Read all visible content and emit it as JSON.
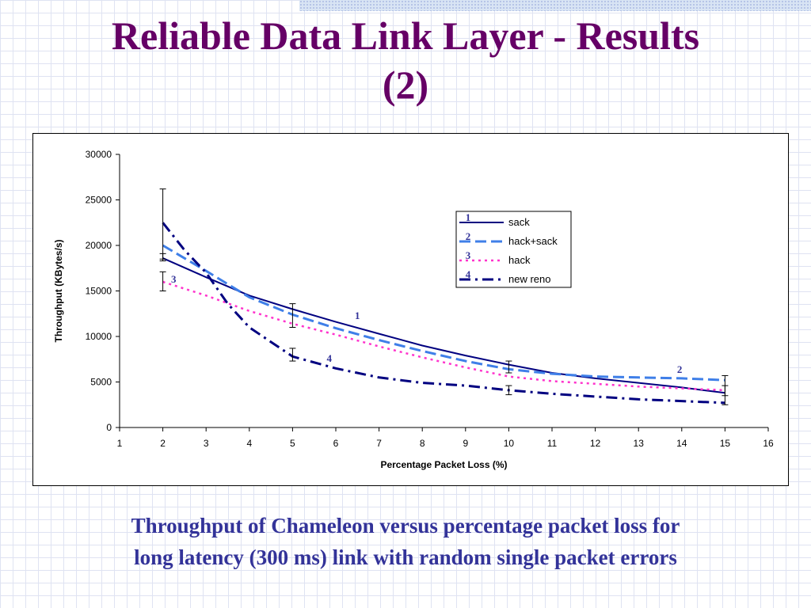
{
  "slide": {
    "title_line1": "Reliable Data Link Layer - Results",
    "title_line2": "(2)",
    "caption_line1": "Throughput of Chameleon versus percentage packet loss for",
    "caption_line2": "long latency (300 ms) link with random single packet errors"
  },
  "chart_data": {
    "type": "line",
    "title": "",
    "xlabel": "Percentage Packet Loss (%)",
    "ylabel": "Throughput (KBytes/s)",
    "xlim": [
      1,
      16
    ],
    "ylim": [
      0,
      30000
    ],
    "x_ticks": [
      1,
      2,
      3,
      4,
      5,
      6,
      7,
      8,
      9,
      10,
      11,
      12,
      13,
      14,
      15,
      16
    ],
    "y_ticks": [
      0,
      5000,
      10000,
      15000,
      20000,
      25000,
      30000
    ],
    "grid": false,
    "legend_position": "upper-right",
    "series": [
      {
        "name": "sack",
        "number": "1",
        "color": "#000080",
        "dash": "solid",
        "x": [
          2,
          3,
          4,
          5,
          6,
          7,
          8,
          9,
          10,
          11,
          12,
          13,
          14,
          15
        ],
        "y": [
          18600,
          16500,
          14500,
          13000,
          11600,
          10300,
          9000,
          7900,
          6900,
          6000,
          5400,
          4900,
          4400,
          3800
        ]
      },
      {
        "name": "hack+sack",
        "number": "2",
        "color": "#3f7fe8",
        "dash": "dash",
        "x": [
          2,
          3,
          4,
          5,
          6,
          7,
          8,
          9,
          10,
          11,
          12,
          13,
          14,
          15
        ],
        "y": [
          20000,
          17200,
          14300,
          12400,
          10900,
          9600,
          8400,
          7300,
          6400,
          5900,
          5600,
          5500,
          5400,
          5200
        ]
      },
      {
        "name": "hack",
        "number": "3",
        "color": "#ff33cc",
        "dash": "dot",
        "x": [
          2,
          3,
          4,
          5,
          6,
          7,
          8,
          9,
          10,
          11,
          12,
          13,
          14,
          15
        ],
        "y": [
          16000,
          14500,
          12800,
          11400,
          10200,
          8900,
          7700,
          6600,
          5600,
          5100,
          4800,
          4500,
          4300,
          4100
        ]
      },
      {
        "name": "new reno",
        "number": "4",
        "color": "#000080",
        "dash": "dashdot",
        "x": [
          2,
          2.5,
          3,
          3.5,
          4,
          5,
          6,
          7,
          8,
          9,
          10,
          11,
          12,
          13,
          14,
          15
        ],
        "y": [
          22500,
          19500,
          17000,
          13600,
          11000,
          7800,
          6500,
          5500,
          4900,
          4600,
          4100,
          3700,
          3400,
          3100,
          2900,
          2700
        ]
      }
    ],
    "error_bars": [
      {
        "x": 2,
        "low": 18500,
        "high": 26200
      },
      {
        "x": 2,
        "low": 18300,
        "high": 19100
      },
      {
        "x": 2,
        "low": 15000,
        "high": 17100
      },
      {
        "x": 5,
        "low": 11000,
        "high": 13600
      },
      {
        "x": 5,
        "low": 7300,
        "high": 8700
      },
      {
        "x": 10,
        "low": 6000,
        "high": 7300
      },
      {
        "x": 10,
        "low": 3600,
        "high": 4600
      },
      {
        "x": 15,
        "low": 3500,
        "high": 5700
      },
      {
        "x": 15,
        "low": 2500,
        "high": 4600
      }
    ],
    "curve_labels": [
      {
        "text": "1",
        "x": 6.5,
        "y": 11900
      },
      {
        "text": "2",
        "x": 13.95,
        "y": 6000
      },
      {
        "text": "3",
        "x": 2.25,
        "y": 15900
      },
      {
        "text": "4",
        "x": 5.85,
        "y": 7200
      }
    ]
  }
}
